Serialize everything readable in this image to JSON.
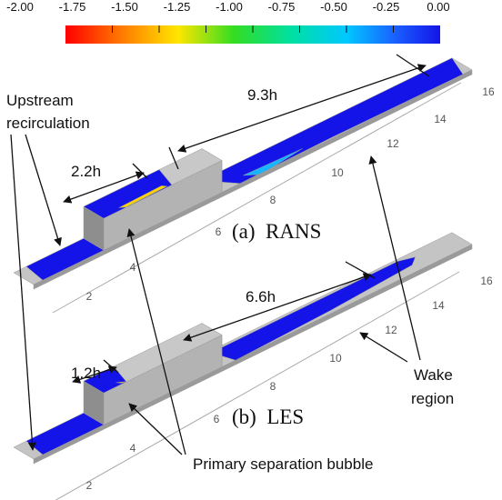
{
  "colorbar": {
    "ticks": [
      "-2.00",
      "-1.75",
      "-1.50",
      "-1.25",
      "-1.00",
      "-0.75",
      "-0.50",
      "-0.25",
      "0.00"
    ]
  },
  "panels": [
    {
      "label": "(a)  RANS",
      "dimensions": [
        "9.3h",
        "2.2h"
      ],
      "axis_ticks": [
        "2",
        "4",
        "6",
        "8",
        "10",
        "12",
        "14",
        "16"
      ]
    },
    {
      "label": "(b)  LES",
      "dimensions": [
        "6.6h",
        "1.2h"
      ],
      "axis_ticks": [
        "2",
        "4",
        "6",
        "8",
        "10",
        "12",
        "14",
        "16"
      ]
    }
  ],
  "annotations": {
    "upstream": [
      "Upstream",
      "recirculation"
    ],
    "wake": [
      "Wake",
      "region"
    ],
    "bubble": "Primary separation bubble"
  }
}
